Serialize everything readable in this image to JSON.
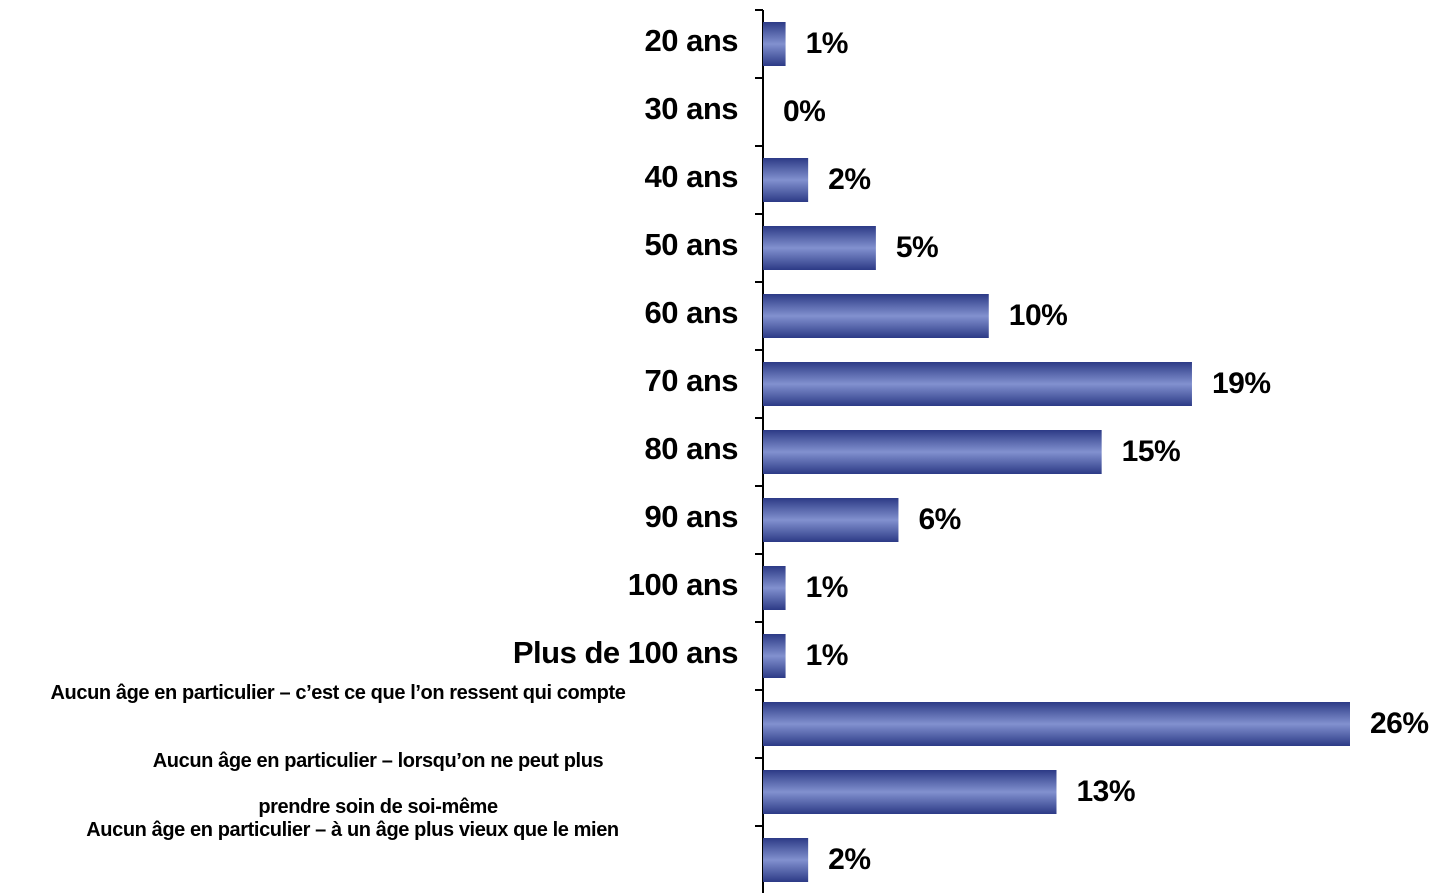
{
  "chart_data": {
    "type": "barh",
    "categories": [
      "20 ans",
      "30 ans",
      "40 ans",
      "50 ans",
      "60 ans",
      "70 ans",
      "80 ans",
      "90 ans",
      "100 ans",
      "Plus de 100 ans",
      "Aucun âge en particulier – c’est ce que l’on ressent qui compte",
      "Aucun âge en particulier – lorsqu’on ne peut plus\n\nprendre soin de soi-même",
      "Aucun âge en particulier – à un âge plus vieux que le mien"
    ],
    "values": [
      1,
      0,
      2,
      5,
      10,
      19,
      15,
      6,
      1,
      1,
      26,
      13,
      2
    ],
    "value_labels": [
      "1%",
      "0%",
      "2%",
      "5%",
      "10%",
      "19%",
      "15%",
      "6%",
      "1%",
      "1%",
      "26%",
      "13%",
      "2%"
    ],
    "color": "#4f5fa8"
  }
}
